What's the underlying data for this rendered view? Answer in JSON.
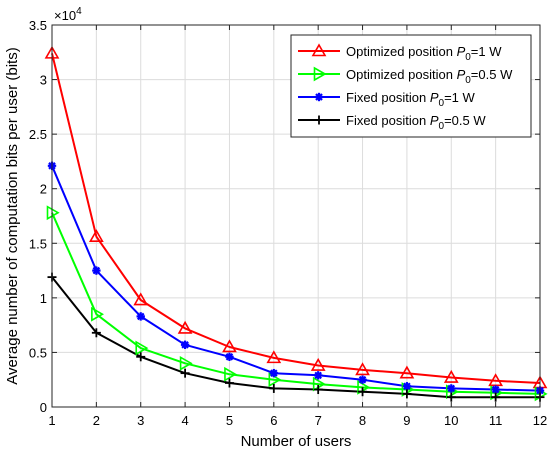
{
  "chart_data": {
    "type": "line",
    "title": "",
    "xlabel": "Number of users",
    "ylabel": "Average number of computation bits per user (bits)",
    "y_multiplier_label": "×10",
    "y_multiplier_exponent": "4",
    "x": [
      1,
      2,
      3,
      4,
      5,
      6,
      7,
      8,
      9,
      10,
      11,
      12
    ],
    "xlim": [
      1,
      12
    ],
    "ylim": [
      0,
      3.5
    ],
    "x_ticks": [
      "1",
      "2",
      "3",
      "4",
      "5",
      "6",
      "7",
      "8",
      "9",
      "10",
      "11",
      "12"
    ],
    "y_ticks": [
      "0",
      "0.5",
      "1",
      "1.5",
      "2",
      "2.5",
      "3",
      "3.5"
    ],
    "grid": true,
    "legend_position": "top-right",
    "series": [
      {
        "name_main": "Optimized position ",
        "name_sym": "P",
        "name_sub": "0",
        "name_tail": "=1 W",
        "color": "#ff0000",
        "marker": "triangle-up",
        "values": [
          3.24,
          1.56,
          0.98,
          0.72,
          0.55,
          0.45,
          0.38,
          0.34,
          0.31,
          0.27,
          0.24,
          0.22
        ]
      },
      {
        "name_main": "Optimized position ",
        "name_sym": "P",
        "name_sub": "0",
        "name_tail": "=0.5 W",
        "color": "#00ff00",
        "marker": "triangle-right",
        "values": [
          1.78,
          0.85,
          0.54,
          0.4,
          0.3,
          0.25,
          0.21,
          0.18,
          0.16,
          0.14,
          0.13,
          0.12
        ]
      },
      {
        "name_main": "Fixed position ",
        "name_sym": "P",
        "name_sub": "0",
        "name_tail": "=1 W",
        "color": "#0000ff",
        "marker": "asterisk",
        "values": [
          2.21,
          1.25,
          0.83,
          0.57,
          0.46,
          0.31,
          0.29,
          0.25,
          0.19,
          0.17,
          0.16,
          0.15
        ]
      },
      {
        "name_main": "Fixed position ",
        "name_sym": "P",
        "name_sub": "0",
        "name_tail": "=0.5 W",
        "color": "#000000",
        "marker": "plus",
        "values": [
          1.19,
          0.68,
          0.46,
          0.31,
          0.22,
          0.17,
          0.16,
          0.14,
          0.12,
          0.09,
          0.09,
          0.09
        ]
      }
    ]
  }
}
